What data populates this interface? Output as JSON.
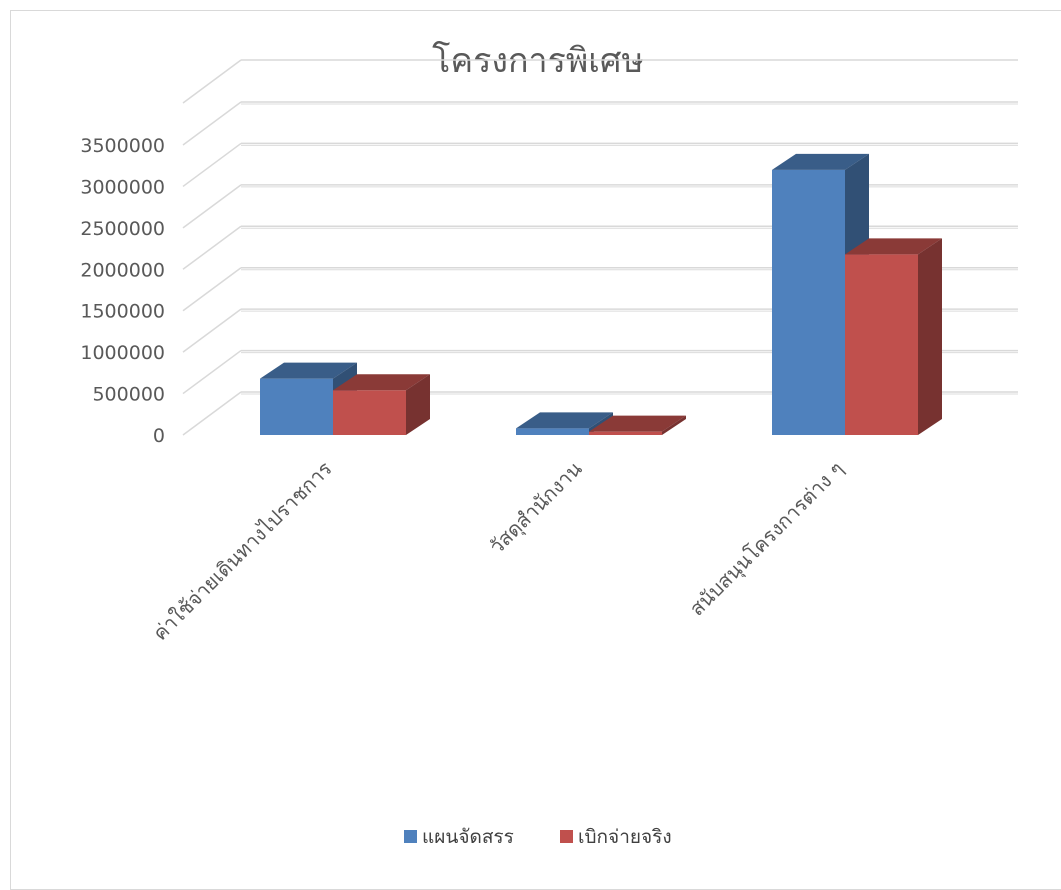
{
  "chart_data": {
    "type": "bar",
    "title": "โครงการพิเศษ",
    "categories": [
      "ค่าใช้จ่ายเดินทางไปราชการ",
      "วัสดุสำนักงาน",
      "สนับสนุนโครงการต่าง ๆ"
    ],
    "series": [
      {
        "name": "แผนจัดสรร",
        "values": [
          680000,
          80000,
          3200000
        ],
        "color": "#4f81bd"
      },
      {
        "name": "เบิกจ่ายจริง",
        "values": [
          540000,
          40000,
          2180000
        ],
        "color": "#c0504d"
      }
    ],
    "yticks": [
      "0",
      "500000",
      "1000000",
      "1500000",
      "2000000",
      "2500000",
      "3000000",
      "3500000"
    ],
    "ylim": [
      0,
      3500000
    ],
    "grid": true,
    "legend": "bottom",
    "style": "3d-clustered-column"
  }
}
